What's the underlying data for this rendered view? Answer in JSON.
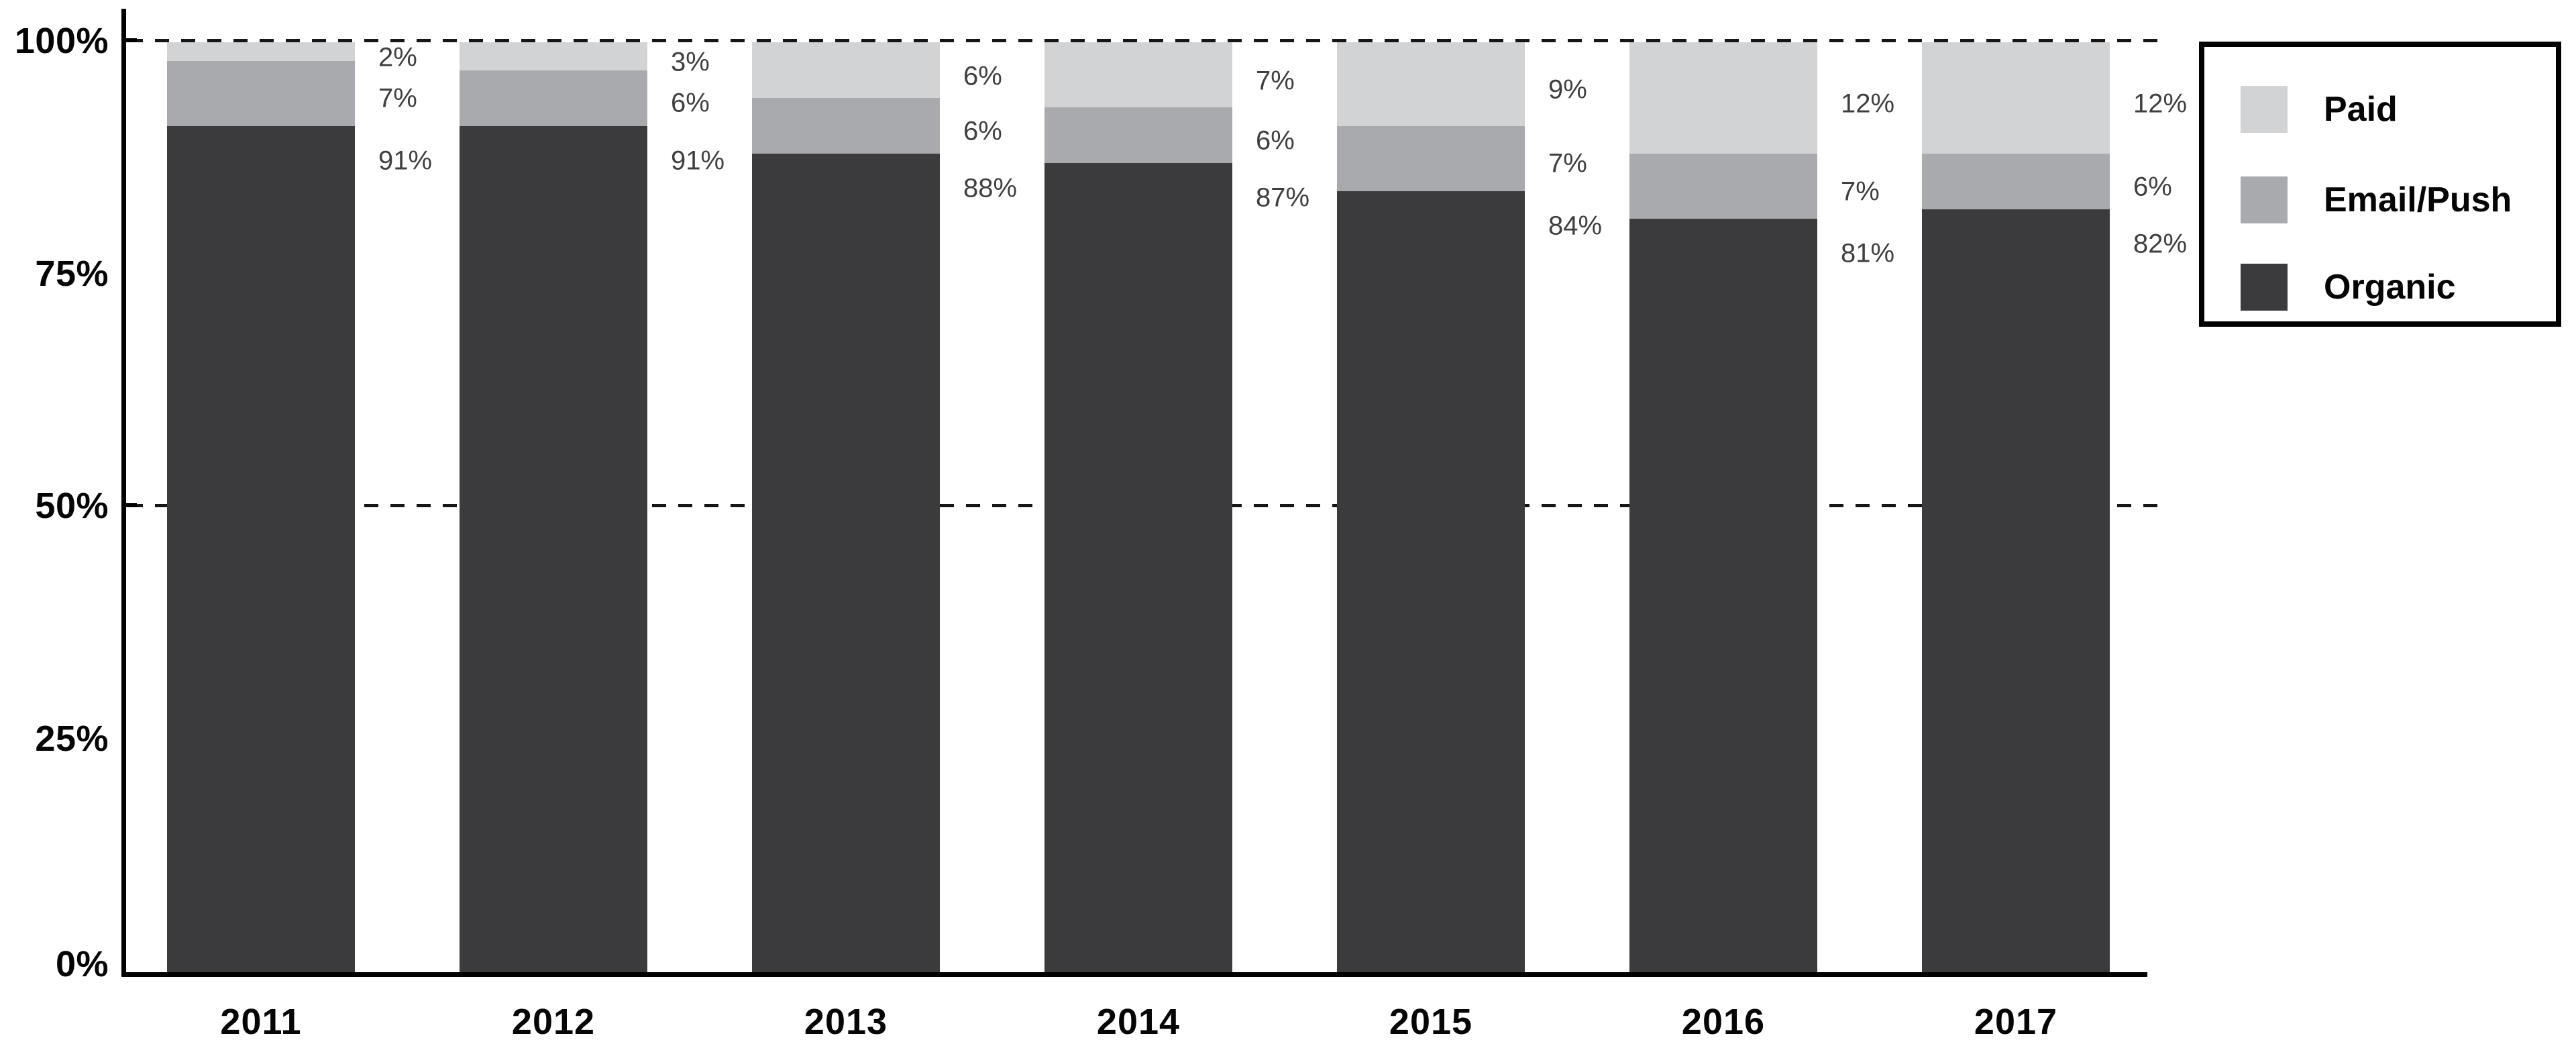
{
  "chart_data": {
    "type": "bar",
    "stacked": true,
    "title": "",
    "categories": [
      "2011",
      "2012",
      "2013",
      "2014",
      "2015",
      "2016",
      "2017"
    ],
    "series": [
      {
        "name": "Paid",
        "color": "#d2d3d4",
        "values": [
          2,
          3,
          6,
          7,
          9,
          12,
          12
        ]
      },
      {
        "name": "Email/Push",
        "color": "#a8aaad",
        "values": [
          7,
          6,
          6,
          6,
          7,
          7,
          6
        ]
      },
      {
        "name": "Organic",
        "color": "#3b3b3d",
        "values": [
          91,
          91,
          88,
          87,
          84,
          81,
          82
        ]
      }
    ],
    "value_label_format": "{v}%",
    "xlabel": "",
    "ylabel": "",
    "y_axis": {
      "range": [
        0,
        100
      ],
      "tick_values": [
        0,
        25,
        50,
        75,
        100
      ],
      "tick_labels": [
        "0%",
        "25%",
        "50%",
        "75%",
        "100%"
      ],
      "gridlines_at": [
        50,
        100
      ],
      "gridline_style": "dashed"
    },
    "legend": {
      "position": "top-right",
      "items": [
        "Paid",
        "Email/Push",
        "Organic"
      ]
    },
    "colors": {
      "background": "#ffffff",
      "axis": "#000000",
      "gridline": "#161616",
      "tick_label_text": "#050505",
      "value_label_text": "#3f3f41",
      "legend_text": "#050505",
      "legend_border": "#000000"
    }
  }
}
